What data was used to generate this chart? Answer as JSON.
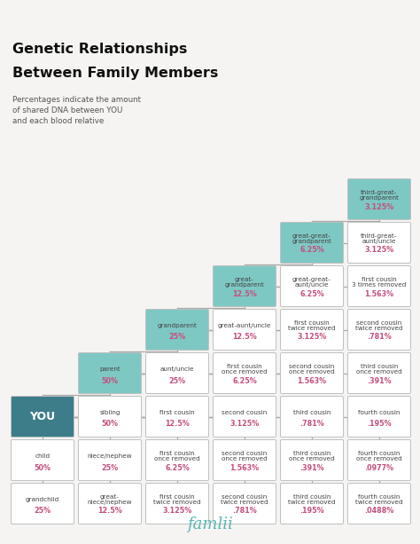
{
  "title1": "Genetic Relationships",
  "title2": "Between Family Members",
  "subtitle": "Percentages indicate the amount\nof shared DNA between YOU\nand each blood relative",
  "bg_color": "#f5f4f2",
  "box_border_color": "#c0c0c0",
  "teal_light": "#7ec8c4",
  "teal_dark": "#3d7d8a",
  "white": "#ffffff",
  "label_color": "#444444",
  "pct_color": "#c44f7e",
  "logo_color": "#5ab5b5",
  "cells": [
    {
      "row": 0,
      "col": 5,
      "label": "third-great-\ngrandparent",
      "pct": "3.125%",
      "color": "teal_light"
    },
    {
      "row": 1,
      "col": 4,
      "label": "great-great-\ngrandparent",
      "pct": "6.25%",
      "color": "teal_light"
    },
    {
      "row": 1,
      "col": 5,
      "label": "third-great-\naunt/uncle",
      "pct": "3.125%",
      "color": "white"
    },
    {
      "row": 2,
      "col": 3,
      "label": "great-\ngrandparent",
      "pct": "12.5%",
      "color": "teal_light"
    },
    {
      "row": 2,
      "col": 4,
      "label": "great-great-\naunt/uncle",
      "pct": "6.25%",
      "color": "white"
    },
    {
      "row": 2,
      "col": 5,
      "label": "first cousin\n3 times removed",
      "pct": "1.563%",
      "color": "white"
    },
    {
      "row": 3,
      "col": 2,
      "label": "grandparent",
      "pct": "25%",
      "color": "teal_light"
    },
    {
      "row": 3,
      "col": 3,
      "label": "great-aunt/uncle",
      "pct": "12.5%",
      "color": "white"
    },
    {
      "row": 3,
      "col": 4,
      "label": "first cousin\ntwice removed",
      "pct": "3.125%",
      "color": "white"
    },
    {
      "row": 3,
      "col": 5,
      "label": "second cousin\ntwice removed",
      "pct": ".781%",
      "color": "white"
    },
    {
      "row": 4,
      "col": 1,
      "label": "parent",
      "pct": "50%",
      "color": "teal_light"
    },
    {
      "row": 4,
      "col": 2,
      "label": "aunt/uncle",
      "pct": "25%",
      "color": "white"
    },
    {
      "row": 4,
      "col": 3,
      "label": "first cousin\nonce removed",
      "pct": "6.25%",
      "color": "white"
    },
    {
      "row": 4,
      "col": 4,
      "label": "second cousin\nonce removed",
      "pct": "1.563%",
      "color": "white"
    },
    {
      "row": 4,
      "col": 5,
      "label": "third cousin\nonce removed",
      "pct": ".391%",
      "color": "white"
    },
    {
      "row": 5,
      "col": 0,
      "label": "YOU",
      "pct": "",
      "color": "teal_dark"
    },
    {
      "row": 5,
      "col": 1,
      "label": "sibling",
      "pct": "50%",
      "color": "white"
    },
    {
      "row": 5,
      "col": 2,
      "label": "first cousin",
      "pct": "12.5%",
      "color": "white"
    },
    {
      "row": 5,
      "col": 3,
      "label": "second cousin",
      "pct": "3.125%",
      "color": "white"
    },
    {
      "row": 5,
      "col": 4,
      "label": "third cousin",
      "pct": ".781%",
      "color": "white"
    },
    {
      "row": 5,
      "col": 5,
      "label": "fourth cousin",
      "pct": ".195%",
      "color": "white"
    },
    {
      "row": 6,
      "col": 0,
      "label": "child",
      "pct": "50%",
      "color": "white"
    },
    {
      "row": 6,
      "col": 1,
      "label": "niece/nephew",
      "pct": "25%",
      "color": "white"
    },
    {
      "row": 6,
      "col": 2,
      "label": "first cousin\nonce removed",
      "pct": "6.25%",
      "color": "white"
    },
    {
      "row": 6,
      "col": 3,
      "label": "second cousin\nonce removed",
      "pct": "1.563%",
      "color": "white"
    },
    {
      "row": 6,
      "col": 4,
      "label": "third cousin\nonce removed",
      "pct": ".391%",
      "color": "white"
    },
    {
      "row": 6,
      "col": 5,
      "label": "fourth cousin\nonce removed",
      "pct": ".0977%",
      "color": "white"
    },
    {
      "row": 7,
      "col": 0,
      "label": "grandchild",
      "pct": "25%",
      "color": "white"
    },
    {
      "row": 7,
      "col": 1,
      "label": "great-\nniece/nephew",
      "pct": "12.5%",
      "color": "white"
    },
    {
      "row": 7,
      "col": 2,
      "label": "first cousin\ntwice removed",
      "pct": "3.125%",
      "color": "white"
    },
    {
      "row": 7,
      "col": 3,
      "label": "second cousin\ntwice removed",
      "pct": ".781%",
      "color": "white"
    },
    {
      "row": 7,
      "col": 4,
      "label": "third cousin\ntwice removed",
      "pct": ".195%",
      "color": "white"
    },
    {
      "row": 7,
      "col": 5,
      "label": "fourth cousin\ntwice removed",
      "pct": ".0488%",
      "color": "white"
    }
  ]
}
